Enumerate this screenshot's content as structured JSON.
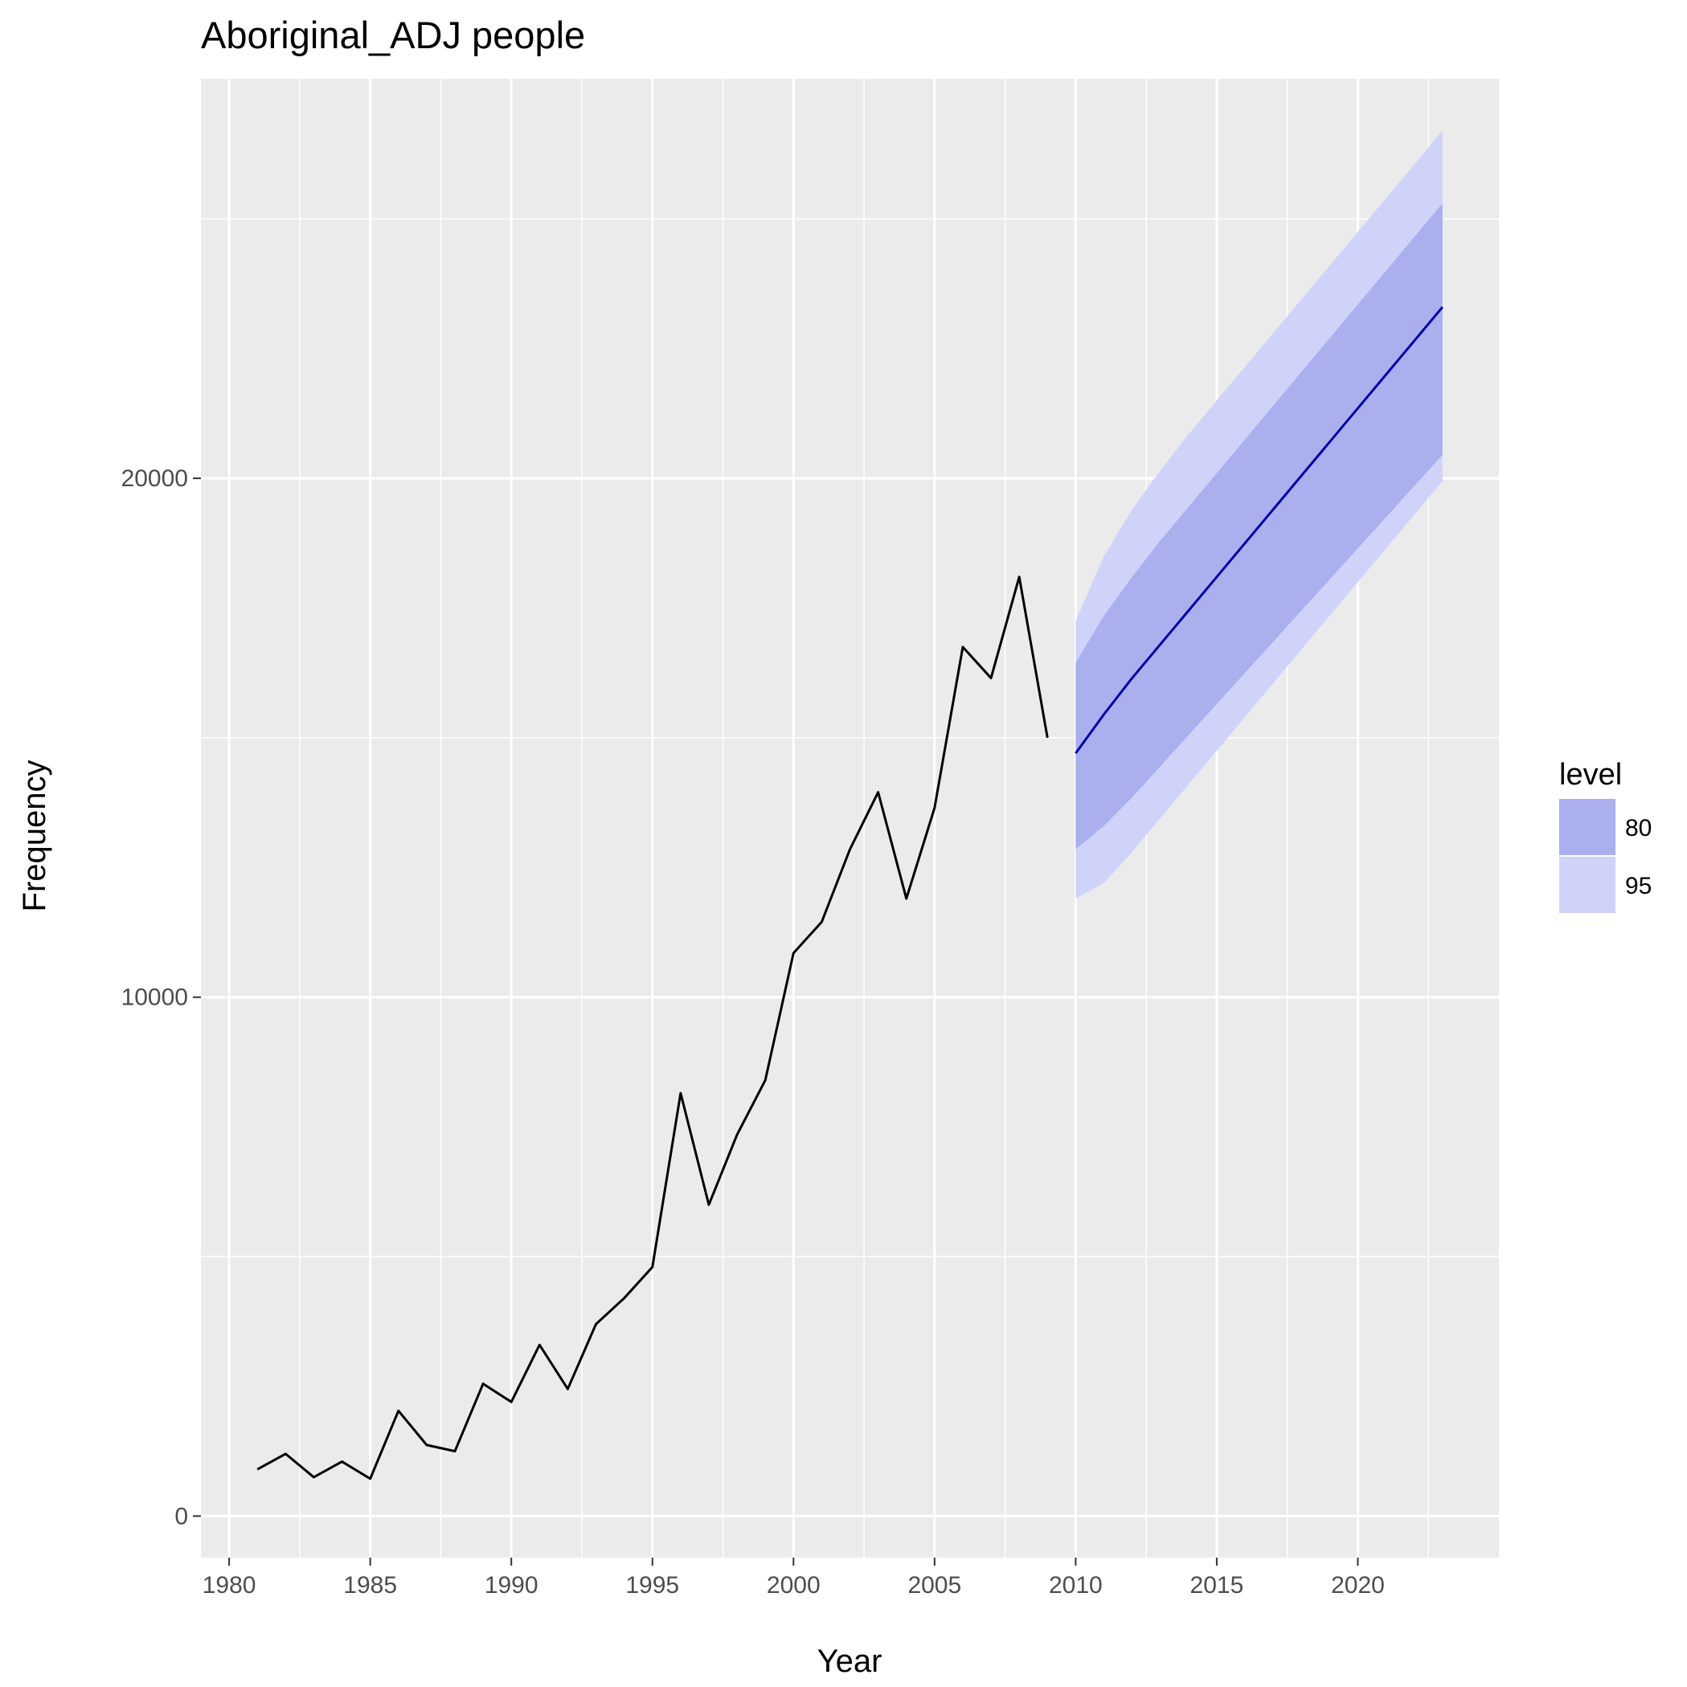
{
  "chart_data": {
    "type": "line",
    "title": "Aboriginal_ADJ people",
    "xlabel": "Year",
    "ylabel": "Frequency",
    "xlim": [
      1979,
      2025
    ],
    "ylim": [
      -800,
      27700
    ],
    "x_ticks": [
      1980,
      1985,
      1990,
      1995,
      2000,
      2005,
      2010,
      2015,
      2020
    ],
    "y_ticks": [
      0,
      10000,
      20000
    ],
    "grid": true,
    "series": [
      {
        "x": [
          1981,
          1982,
          1983,
          1984,
          1985,
          1986,
          1987,
          1988,
          1989,
          1990,
          1991,
          1992,
          1993,
          1994,
          1995,
          1996,
          1997,
          1998,
          1999,
          2000,
          2001,
          2002,
          2003,
          2004,
          2005,
          2006,
          2007,
          2008,
          2009
        ],
        "values": [
          900,
          1200,
          750,
          1050,
          720,
          2030,
          1370,
          1250,
          2550,
          2200,
          3300,
          2450,
          3700,
          4200,
          4800,
          8150,
          6000,
          7350,
          8400,
          10850,
          11450,
          12850,
          13950,
          11900,
          13650,
          16750,
          16150,
          18100,
          15000
        ],
        "color": "#000000"
      }
    ],
    "forecast": {
      "x": [
        2010,
        2011,
        2012,
        2013,
        2014,
        2015,
        2016,
        2017,
        2018,
        2019,
        2020,
        2021,
        2022,
        2023
      ],
      "mean": [
        14700,
        15450,
        16150,
        16800,
        17450,
        18100,
        18750,
        19400,
        20050,
        20700,
        21350,
        22000,
        22650,
        23300
      ],
      "lo80": [
        12850,
        13300,
        13850,
        14450,
        15050,
        15650,
        16250,
        16850,
        17450,
        18050,
        18650,
        19250,
        19850,
        20450
      ],
      "hi80": [
        16450,
        17350,
        18100,
        18800,
        19450,
        20100,
        20750,
        21400,
        22050,
        22700,
        23350,
        24000,
        24650,
        25300
      ],
      "lo95": [
        11900,
        12200,
        12800,
        13450,
        14100,
        14750,
        15400,
        16050,
        16700,
        17350,
        18000,
        18650,
        19300,
        19950
      ],
      "hi95": [
        17250,
        18500,
        19400,
        20150,
        20850,
        21500,
        22150,
        22800,
        23450,
        24100,
        24750,
        25400,
        26050,
        26700
      ],
      "color": "#0000aa"
    },
    "legend": {
      "title": "level",
      "placement": "right",
      "items": [
        {
          "label": "80",
          "color": "#aab0ee"
        },
        {
          "label": "95",
          "color": "#cfd3fa"
        }
      ]
    },
    "colors": {
      "panel": "#ebebeb",
      "grid": "#ffffff",
      "band80": "#aab0ee",
      "band95": "#cfd3fa"
    }
  }
}
